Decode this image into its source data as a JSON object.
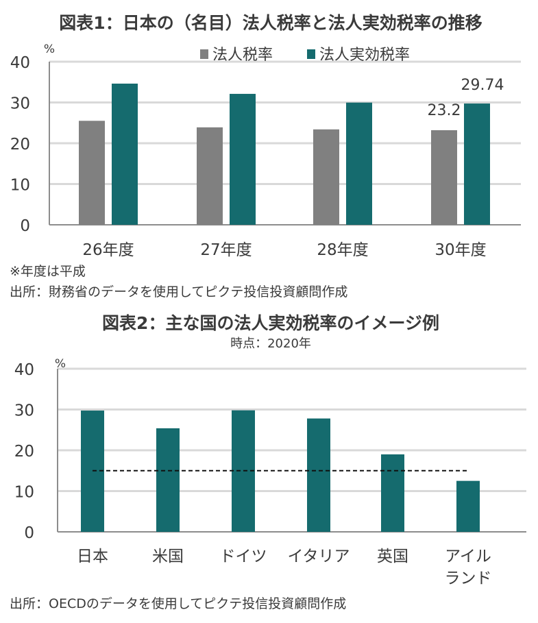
{
  "colors": {
    "nominal": "#808080",
    "effective": "#156b6e",
    "grid": "#d9d9d9",
    "axis": "#8c8c8c",
    "dashed": "#111111"
  },
  "notes": {
    "era_note": "※年度は平成",
    "source1": "出所：財務省のデータを使用してピクテ投信投資顧問作成",
    "source2": "出所：OECDのデータを使用してピクテ投信投資顧問作成"
  },
  "chart_data": [
    {
      "type": "bar",
      "title": "図表1：日本の（名目）法人税率と法人実効税率の推移",
      "ylabel": "%",
      "ylim": [
        0,
        40
      ],
      "yticks": [
        0,
        10,
        20,
        30,
        40
      ],
      "grid": true,
      "legend_position": "top-center",
      "categories": [
        "26年度",
        "27年度",
        "28年度",
        "30年度"
      ],
      "series": [
        {
          "name": "法人税率",
          "values": [
            25.5,
            23.9,
            23.4,
            23.2
          ]
        },
        {
          "name": "法人実効税率",
          "values": [
            34.62,
            32.11,
            29.97,
            29.74
          ]
        }
      ],
      "data_labels": [
        {
          "series": 0,
          "index": 3,
          "text": "23.2"
        },
        {
          "series": 1,
          "index": 3,
          "text": "29.74"
        }
      ]
    },
    {
      "type": "bar",
      "title": "図表2：主な国の法人実効税率のイメージ例",
      "subtitle": "時点：2020年",
      "ylabel": "%",
      "ylim": [
        0,
        40
      ],
      "yticks": [
        0,
        10,
        20,
        30,
        40
      ],
      "grid": true,
      "categories": [
        "日本",
        "米国",
        "ドイツ",
        "イタリア",
        "英国",
        "アイル\nランド"
      ],
      "values": [
        29.74,
        25.4,
        29.8,
        27.8,
        19.0,
        12.5
      ],
      "reference_line": {
        "value": 15,
        "style": "dashed"
      }
    }
  ]
}
